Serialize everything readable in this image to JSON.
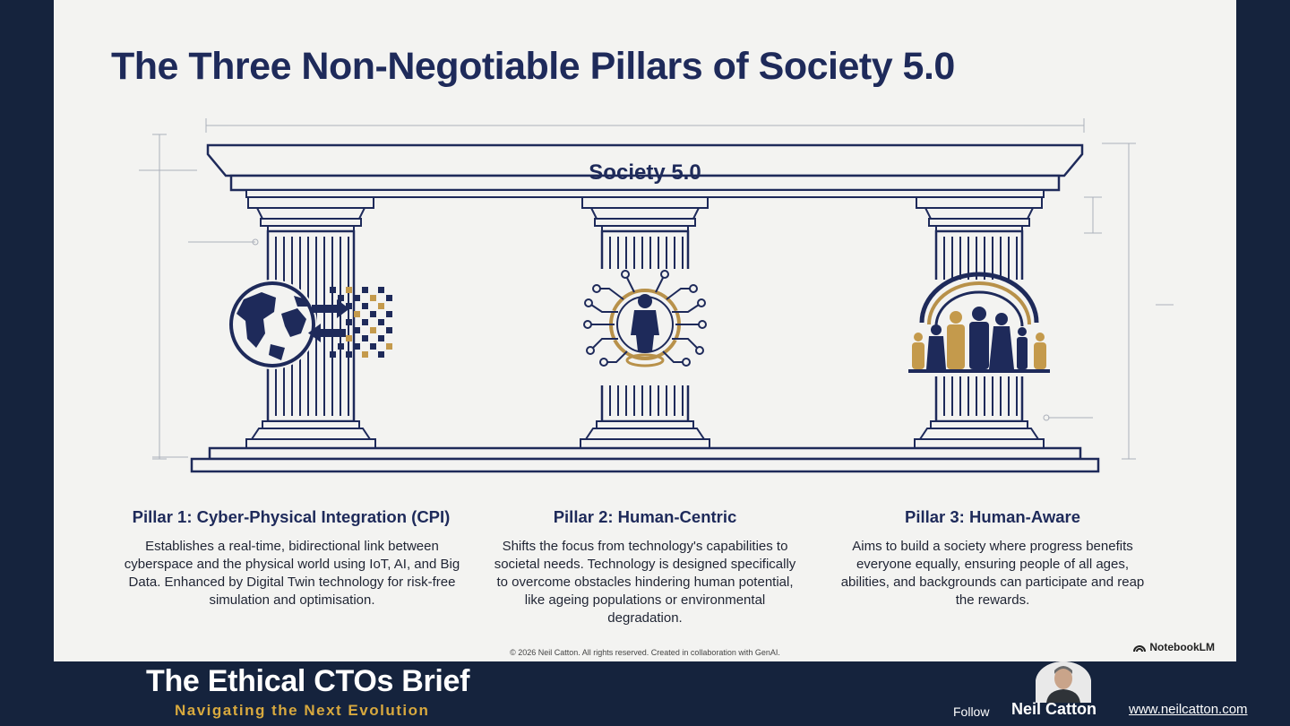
{
  "slide": {
    "title": "The Three Non-Negotiable Pillars of Society 5.0",
    "entablature_label": "Society 5.0",
    "pillars": [
      {
        "title": "Pillar 1: Cyber-Physical Integration (CPI)",
        "description": "Establishes a real-time, bidirectional link between cyberspace and the physical world using IoT, AI, and Big Data. Enhanced by Digital Twin technology for risk-free simulation and optimisation.",
        "illustration_icon": "globe-data-exchange-icon"
      },
      {
        "title": "Pillar 2: Human-Centric",
        "description": "Shifts the focus from technology's capabilities to societal needs. Technology is designed specifically to overcome obstacles hindering human potential, like ageing populations or environmental degradation.",
        "illustration_icon": "person-circuit-icon"
      },
      {
        "title": "Pillar 3: Human-Aware",
        "description": "Aims to build a society where progress benefits everyone equally, ensuring people of all ages, abilities, and backgrounds can participate and reap the rewards.",
        "illustration_icon": "diverse-people-rainbow-icon"
      }
    ],
    "copyright": "© 2026 Neil Catton. All rights reserved. Created in collaboration with GenAI.",
    "notebooklm_badge": "NotebookLM"
  },
  "footer": {
    "brand_title": "The Ethical CTOs Brief",
    "tagline": "Navigating the Next Evolution",
    "follow_label": "Follow",
    "author_name": "Neil Catton",
    "website": "www.neilcatton.com"
  },
  "colors": {
    "navy": "#1e2a5a",
    "gold": "#b8914a",
    "background": "#15233d",
    "slide": "#f3f3f1"
  }
}
